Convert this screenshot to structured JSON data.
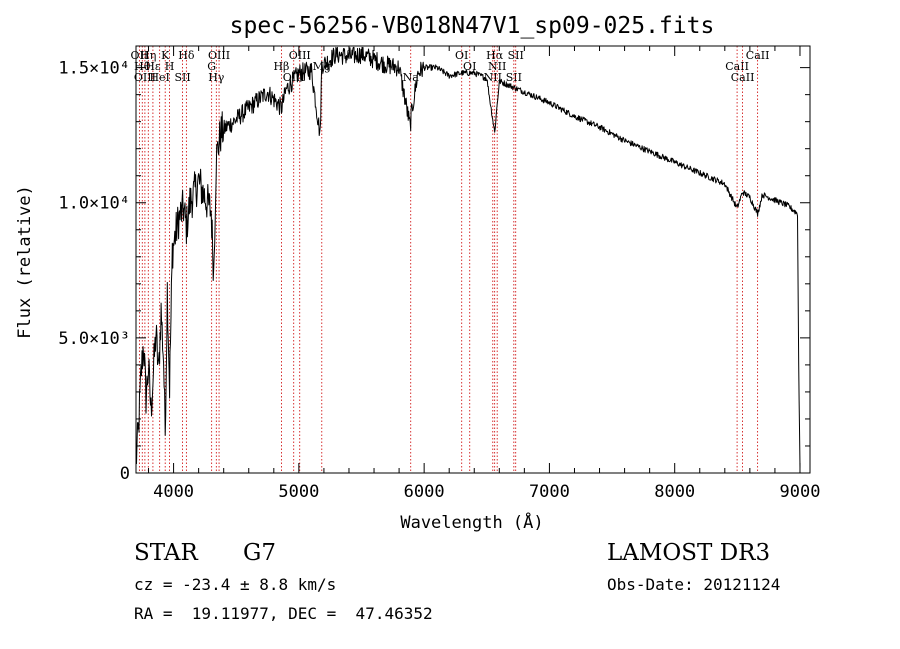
{
  "chart_data": {
    "type": "line",
    "title": "spec-56256-VB018N47V1_sp09-025.fits",
    "xlabel": "Wavelength (Å)",
    "ylabel": "Flux (relative)",
    "xlim": [
      3700,
      9080
    ],
    "ylim": [
      0,
      15800
    ],
    "x_ticks": [
      4000,
      5000,
      6000,
      7000,
      8000,
      9000
    ],
    "x_tick_labels": [
      "4000",
      "5000",
      "6000",
      "7000",
      "8000",
      "9000"
    ],
    "y_ticks": [
      0,
      5000,
      10000,
      15000
    ],
    "y_tick_labels": [
      "0",
      "5.0×10³",
      "1.0×10⁴",
      "1.5×10⁴"
    ],
    "series": [
      {
        "name": "spectrum",
        "x": [
          3700,
          3720,
          3740,
          3760,
          3780,
          3800,
          3820,
          3840,
          3860,
          3880,
          3900,
          3920,
          3933,
          3950,
          3968,
          3990,
          4010,
          4040,
          4080,
          4102,
          4130,
          4160,
          4200,
          4250,
          4300,
          4320,
          4340,
          4360,
          4380,
          4420,
          4480,
          4550,
          4650,
          4750,
          4861,
          4900,
          4950,
          5000,
          5100,
          5170,
          5183,
          5220,
          5300,
          5400,
          5500,
          5600,
          5700,
          5800,
          5889,
          5896,
          5950,
          6000,
          6100,
          6200,
          6300,
          6400,
          6500,
          6563,
          6600,
          6700,
          6800,
          7000,
          7200,
          7400,
          7600,
          7800,
          8000,
          8200,
          8400,
          8498,
          8542,
          8600,
          8662,
          8700,
          8800,
          8900,
          8980,
          8990,
          9000
        ],
        "y": [
          400,
          1600,
          3600,
          4800,
          2800,
          3900,
          2300,
          3800,
          5200,
          3700,
          6000,
          4200,
          1500,
          6800,
          3200,
          8200,
          8700,
          9400,
          9800,
          9100,
          10000,
          10300,
          10800,
          10200,
          9700,
          7400,
          11600,
          12200,
          12600,
          12800,
          13000,
          13300,
          13700,
          14100,
          13500,
          14200,
          14500,
          14800,
          14900,
          12500,
          15100,
          15200,
          15500,
          15400,
          15500,
          15300,
          15100,
          15000,
          12800,
          13200,
          14800,
          15000,
          15000,
          14700,
          14800,
          14800,
          14600,
          12600,
          14500,
          14300,
          14100,
          13700,
          13200,
          12800,
          12300,
          11900,
          11500,
          11100,
          10700,
          9800,
          10400,
          10200,
          9600,
          10300,
          10100,
          9900,
          9600,
          4000,
          200
        ]
      }
    ],
    "line_markers": [
      {
        "x": 3727,
        "label": "OII"
      },
      {
        "x": 3750,
        "label": "Hθ"
      },
      {
        "x": 3771,
        "label": "OIII"
      },
      {
        "x": 3798,
        "label": "Hη"
      },
      {
        "x": 3835,
        "label": "Hε"
      },
      {
        "x": 3889,
        "label": "HeI"
      },
      {
        "x": 3933,
        "label": "K"
      },
      {
        "x": 3968,
        "label": "H"
      },
      {
        "x": 4072,
        "label": "SII"
      },
      {
        "x": 4102,
        "label": "Hδ"
      },
      {
        "x": 4304,
        "label": "G"
      },
      {
        "x": 4341,
        "label": "Hγ"
      },
      {
        "x": 4363,
        "label": "OIII"
      },
      {
        "x": 4861,
        "label": "Hβ"
      },
      {
        "x": 4959,
        "label": "OIII"
      },
      {
        "x": 5007,
        "label": "OIII"
      },
      {
        "x": 5183,
        "label": "Mg"
      },
      {
        "x": 5893,
        "label": "Na"
      },
      {
        "x": 6300,
        "label": "OI"
      },
      {
        "x": 6364,
        "label": "OI"
      },
      {
        "x": 6548,
        "label": "NII"
      },
      {
        "x": 6563,
        "label": "Hα"
      },
      {
        "x": 6583,
        "label": "NII"
      },
      {
        "x": 6716,
        "label": "SII"
      },
      {
        "x": 6731,
        "label": "SII"
      },
      {
        "x": 8498,
        "label": "CaII"
      },
      {
        "x": 8542,
        "label": "CaII"
      },
      {
        "x": 8662,
        "label": "CaII"
      }
    ],
    "line_color": "#000000",
    "marker_color": "#cc0000"
  },
  "info": {
    "object_class": "STAR",
    "subclass": "G7",
    "survey": "LAMOST DR3",
    "velocity": "cz = -23.4 ± 8.8 km/s",
    "obs_date": "Obs-Date: 20121124",
    "coords": "RA =  19.11977, DEC =  47.46352"
  }
}
